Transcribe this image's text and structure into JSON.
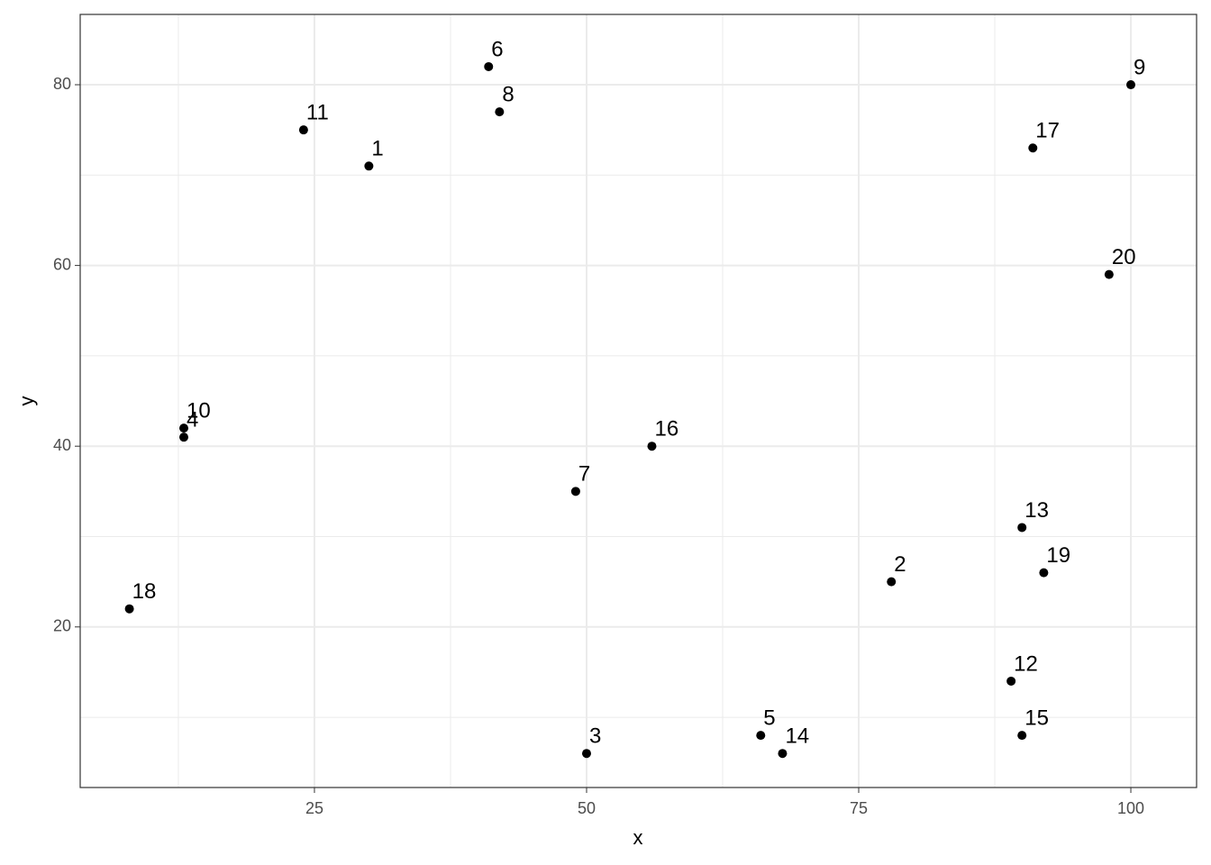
{
  "chart_data": {
    "type": "scatter",
    "x_label": "x",
    "y_label": "y",
    "x": [
      30,
      78,
      50,
      13,
      66,
      41,
      49,
      42,
      100,
      13,
      24,
      89,
      90,
      68,
      90,
      56,
      91,
      8,
      92,
      98
    ],
    "values": [
      71,
      25,
      6,
      41,
      8,
      82,
      35,
      77,
      80,
      42,
      75,
      14,
      31,
      6,
      8,
      40,
      73,
      22,
      26,
      59
    ],
    "labels": [
      "1",
      "2",
      "3",
      "4",
      "5",
      "6",
      "7",
      "8",
      "9",
      "10",
      "11",
      "12",
      "13",
      "14",
      "15",
      "16",
      "17",
      "18",
      "19",
      "20"
    ],
    "color": "#000000",
    "xlim": [
      3.48,
      106.04
    ],
    "ylim": [
      2.23,
      87.78
    ],
    "xticks": [
      25,
      50,
      75,
      100
    ],
    "yticks": [
      20,
      40,
      60,
      80
    ],
    "x_minor_grid": [
      12.5,
      37.5,
      62.5,
      87.5
    ],
    "y_minor_grid": [
      10,
      30,
      50,
      70
    ],
    "grid": true
  }
}
